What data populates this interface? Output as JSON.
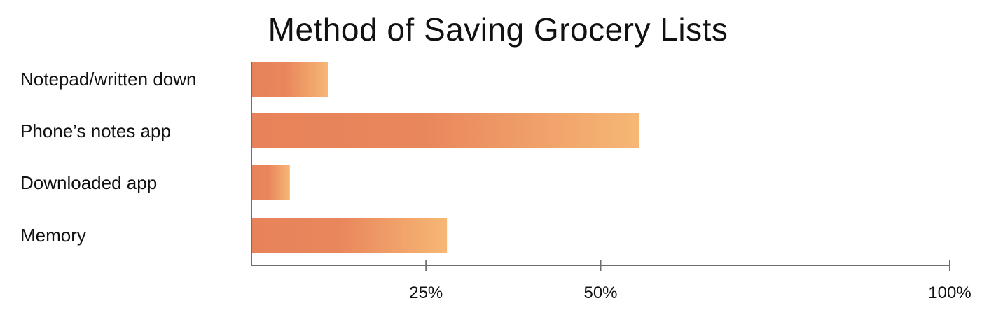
{
  "chart_data": {
    "type": "bar",
    "orientation": "horizontal",
    "title": "Method of Saving Grocery Lists",
    "categories": [
      "Notepad/written down",
      "Phone’s notes app",
      "Downloaded app",
      "Memory"
    ],
    "values": [
      11,
      55.5,
      5.5,
      28
    ],
    "xlim": [
      0,
      100
    ],
    "xticks": [
      25,
      50,
      100
    ],
    "xtick_labels": [
      "25%",
      "50%",
      "100%"
    ],
    "xlabel": "",
    "ylabel": "",
    "grid": false,
    "legend": "none",
    "colors": {
      "bar_start": "#E8825A",
      "bar_mid": "#E9875C",
      "bar_end": "#F6B775",
      "axis": "#6E6E6E",
      "text": "#111111"
    }
  }
}
